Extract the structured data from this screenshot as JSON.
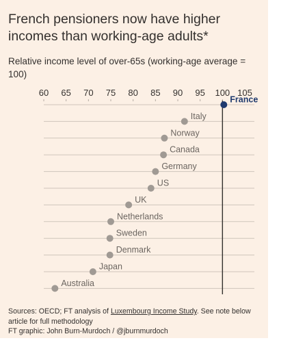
{
  "title": "French pensioners now have higher incomes than working-age adults*",
  "subtitle": "Relative income level of over-65s (working-age average = 100)",
  "footer": {
    "sources_prefix": "Sources: OECD; FT analysis of ",
    "sources_link": "Luxembourg Income Study",
    "sources_suffix": ". See note below article for full methodology",
    "credit": "FT graphic: John Burn-Murdoch / @jburnmurdoch"
  },
  "colors": {
    "background": "#fcf0e5",
    "dot": "#a09a94",
    "highlight": "#1f3a6e",
    "text": "#33302e",
    "gridline": "#cfc5bb"
  },
  "chart_data": {
    "type": "dot",
    "xlim": [
      60,
      105
    ],
    "x_ticks": [
      "60",
      "65",
      "70",
      "75",
      "80",
      "85",
      "90",
      "95",
      "100",
      "105"
    ],
    "reference_line": 100,
    "categories": [
      "France",
      "Italy",
      "Norway",
      "Canada",
      "Germany",
      "US",
      "UK",
      "Netherlands",
      "Sweden",
      "Denmark",
      "Japan",
      "Australia"
    ],
    "values": [
      100.3,
      91.5,
      87,
      86.8,
      85,
      84,
      79,
      75,
      74.8,
      74.8,
      71,
      62.5
    ],
    "highlight": "France"
  }
}
